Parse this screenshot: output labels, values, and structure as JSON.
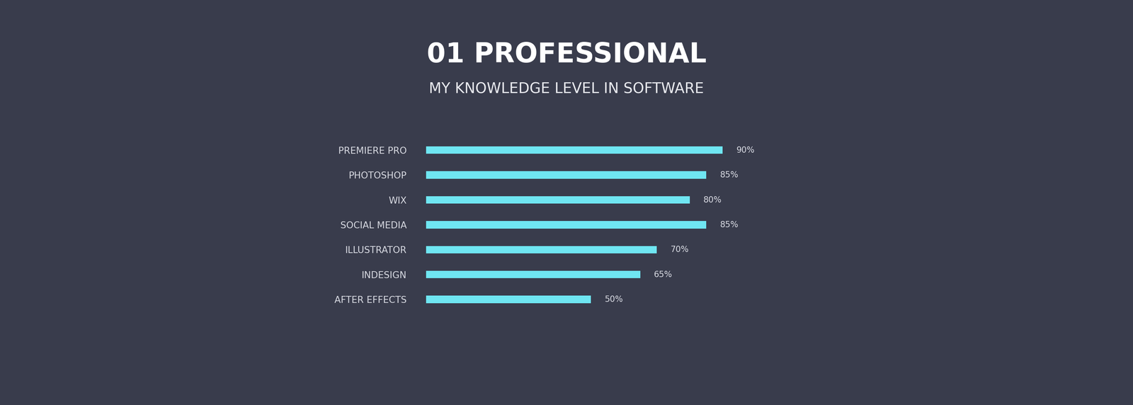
{
  "chart_data": {
    "type": "bar",
    "orientation": "horizontal",
    "title": "01 PROFESSIONAL",
    "subtitle": "MY KNOWLEDGE LEVEL IN SOFTWARE",
    "categories": [
      "PREMIERE PRO",
      "PHOTOSHOP",
      "WIX",
      "SOCIAL MEDIA",
      "ILLUSTRATOR",
      "INDESIGN",
      "AFTER EFFECTS"
    ],
    "values": [
      90,
      85,
      80,
      85,
      70,
      65,
      50
    ],
    "value_labels": [
      "90%",
      "85%",
      "80%",
      "85%",
      "70%",
      "65%",
      "50%"
    ],
    "data_labels": true,
    "color": "#6fe6f2",
    "grid": false,
    "tick_labels": "y"
  }
}
